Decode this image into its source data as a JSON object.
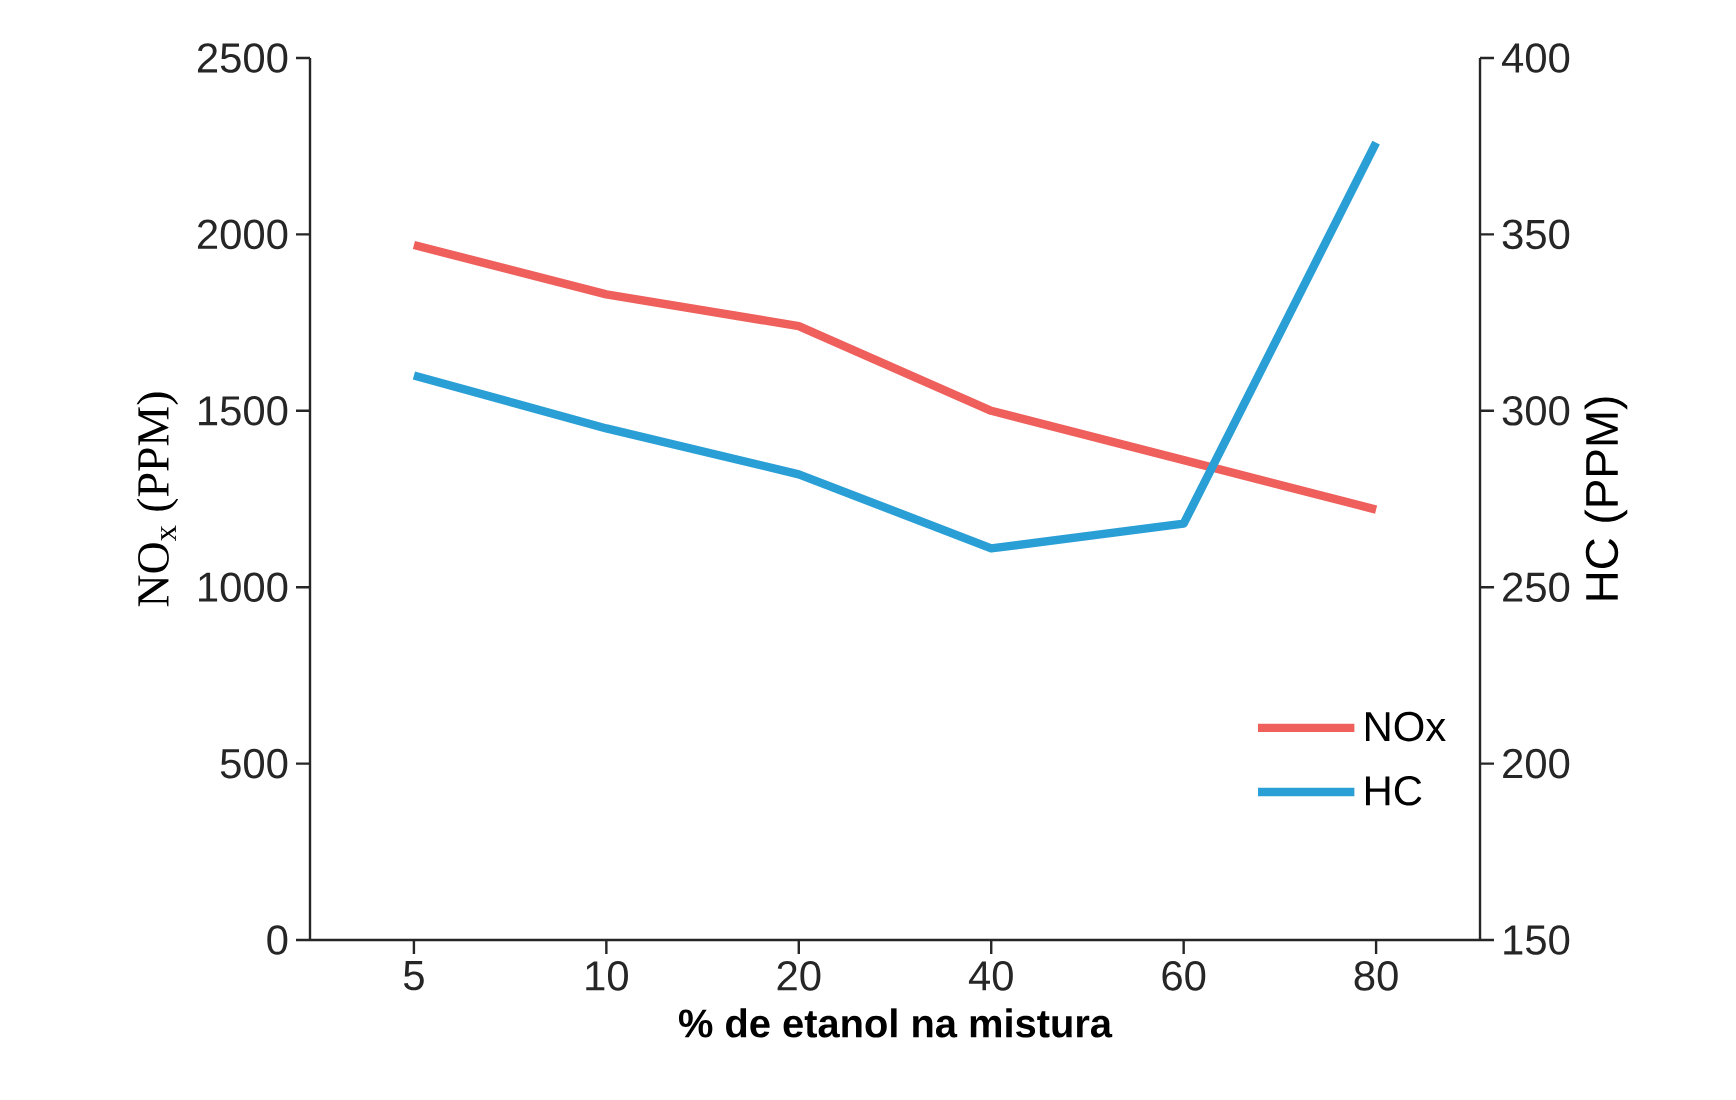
{
  "chart_data": {
    "type": "line",
    "xlabel": "% de etanol na mistura",
    "ylabel": "NO$_{x}$ (PPM)",
    "y2label": "HC (PPM)",
    "categories": [
      "5",
      "10",
      "20",
      "40",
      "60",
      "80"
    ],
    "series": [
      {
        "name": "NOx",
        "color": "#ef5f5b",
        "values": [
          1970,
          1830,
          1740,
          1500,
          1360,
          1220
        ]
      },
      {
        "name": "HC",
        "color": "#2a9fd6",
        "axis": "y2",
        "values": [
          310,
          295,
          282,
          261,
          268,
          376
        ]
      }
    ],
    "ylim": [
      0,
      2500
    ],
    "yticks": [
      0,
      500,
      1000,
      1500,
      2000,
      2500
    ],
    "y2lim": [
      150,
      400
    ],
    "y2ticks": [
      150,
      200,
      250,
      300,
      350,
      400
    ],
    "grid": false,
    "legend": "bottom right",
    "marker": "none",
    "line_style": "solid"
  }
}
